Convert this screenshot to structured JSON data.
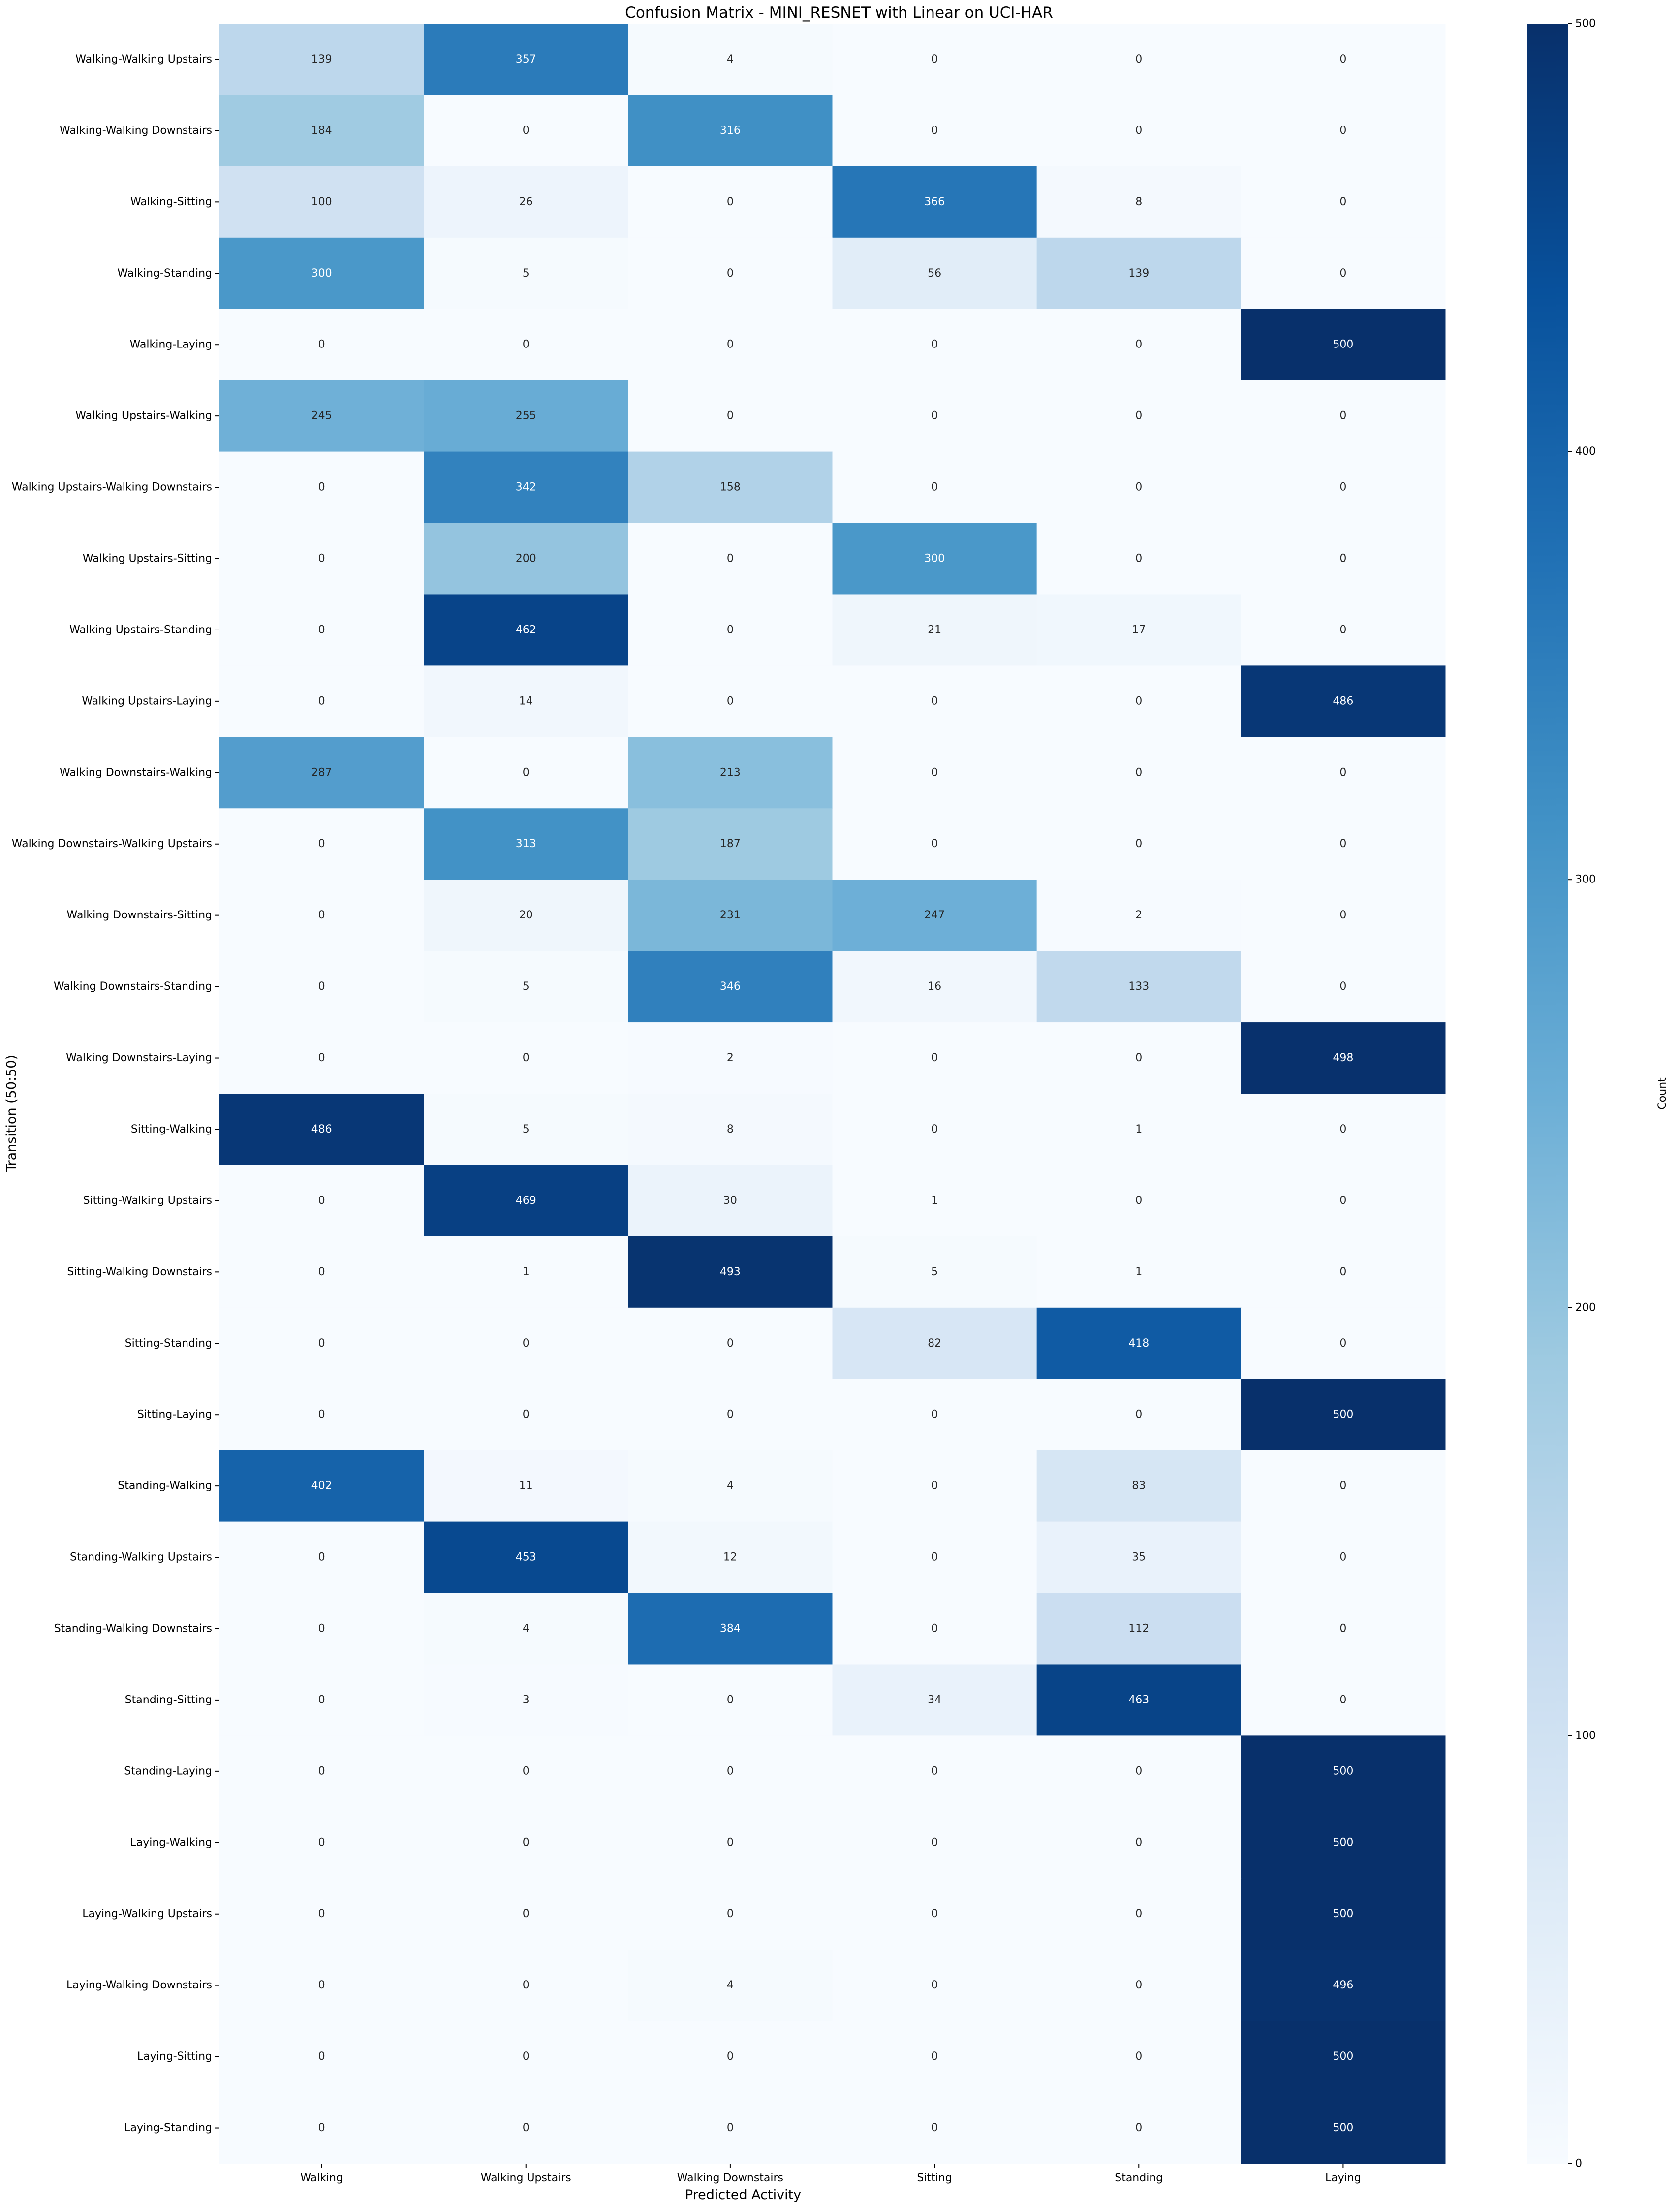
{
  "chart_data": {
    "type": "heatmap",
    "title": "Confusion Matrix - MINI_RESNET with Linear on UCI-HAR",
    "xlabel": "Predicted Activity",
    "ylabel": "Transition (50:50)",
    "colorbar_label": "Count",
    "colormap": "Blues",
    "value_range": [
      0,
      500
    ],
    "colorbar_ticks": [
      0,
      100,
      200,
      300,
      400,
      500
    ],
    "x_categories": [
      "Walking",
      "Walking Upstairs",
      "Walking Downstairs",
      "Sitting",
      "Standing",
      "Laying"
    ],
    "y_categories": [
      "Walking-Walking Upstairs",
      "Walking-Walking Downstairs",
      "Walking-Sitting",
      "Walking-Standing",
      "Walking-Laying",
      "Walking Upstairs-Walking",
      "Walking Upstairs-Walking Downstairs",
      "Walking Upstairs-Sitting",
      "Walking Upstairs-Standing",
      "Walking Upstairs-Laying",
      "Walking Downstairs-Walking",
      "Walking Downstairs-Walking Upstairs",
      "Walking Downstairs-Sitting",
      "Walking Downstairs-Standing",
      "Walking Downstairs-Laying",
      "Sitting-Walking",
      "Sitting-Walking Upstairs",
      "Sitting-Walking Downstairs",
      "Sitting-Standing",
      "Sitting-Laying",
      "Standing-Walking",
      "Standing-Walking Upstairs",
      "Standing-Walking Downstairs",
      "Standing-Sitting",
      "Standing-Laying",
      "Laying-Walking",
      "Laying-Walking Upstairs",
      "Laying-Walking Downstairs",
      "Laying-Sitting",
      "Laying-Standing"
    ],
    "values": [
      [
        139,
        357,
        4,
        0,
        0,
        0
      ],
      [
        184,
        0,
        316,
        0,
        0,
        0
      ],
      [
        100,
        26,
        0,
        366,
        8,
        0
      ],
      [
        300,
        5,
        0,
        56,
        139,
        0
      ],
      [
        0,
        0,
        0,
        0,
        0,
        500
      ],
      [
        245,
        255,
        0,
        0,
        0,
        0
      ],
      [
        0,
        342,
        158,
        0,
        0,
        0
      ],
      [
        0,
        200,
        0,
        300,
        0,
        0
      ],
      [
        0,
        462,
        0,
        21,
        17,
        0
      ],
      [
        0,
        14,
        0,
        0,
        0,
        486
      ],
      [
        287,
        0,
        213,
        0,
        0,
        0
      ],
      [
        0,
        313,
        187,
        0,
        0,
        0
      ],
      [
        0,
        20,
        231,
        247,
        2,
        0
      ],
      [
        0,
        5,
        346,
        16,
        133,
        0
      ],
      [
        0,
        0,
        2,
        0,
        0,
        498
      ],
      [
        486,
        5,
        8,
        0,
        1,
        0
      ],
      [
        0,
        469,
        30,
        1,
        0,
        0
      ],
      [
        0,
        1,
        493,
        5,
        1,
        0
      ],
      [
        0,
        0,
        0,
        82,
        418,
        0
      ],
      [
        0,
        0,
        0,
        0,
        0,
        500
      ],
      [
        402,
        11,
        4,
        0,
        83,
        0
      ],
      [
        0,
        453,
        12,
        0,
        35,
        0
      ],
      [
        0,
        4,
        384,
        0,
        112,
        0
      ],
      [
        0,
        3,
        0,
        34,
        463,
        0
      ],
      [
        0,
        0,
        0,
        0,
        0,
        500
      ],
      [
        0,
        0,
        0,
        0,
        0,
        500
      ],
      [
        0,
        0,
        0,
        0,
        0,
        500
      ],
      [
        0,
        0,
        4,
        0,
        0,
        496
      ],
      [
        0,
        0,
        0,
        0,
        0,
        500
      ],
      [
        0,
        0,
        0,
        0,
        0,
        500
      ]
    ]
  }
}
